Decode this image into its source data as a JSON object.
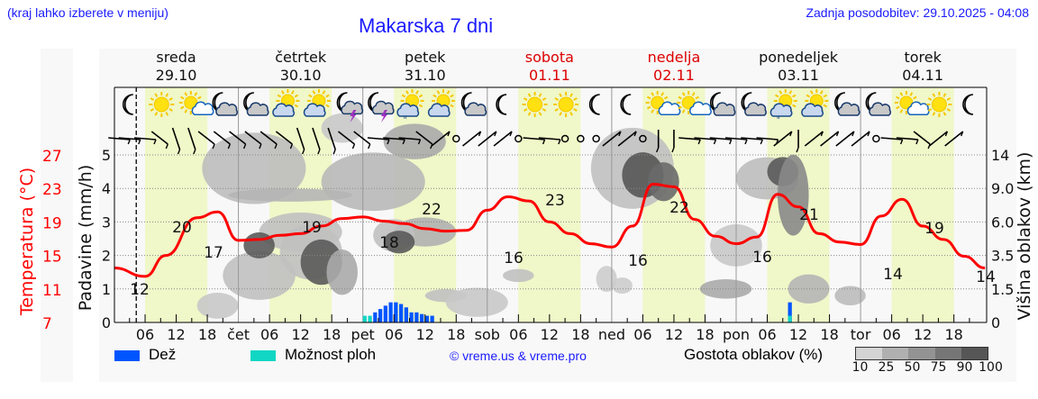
{
  "header": {
    "hint": "(kraj lahko izberete v meniju)",
    "title": "Makarska 7 dni",
    "updated": "Zadnja posodobitev: 29.10.2025 - 04:08"
  },
  "days": [
    {
      "name": "sreda",
      "date": "29.10",
      "weekend": false,
      "abbr": ""
    },
    {
      "name": "četrtek",
      "date": "30.10",
      "weekend": false,
      "abbr": "čet"
    },
    {
      "name": "petek",
      "date": "31.10",
      "weekend": false,
      "abbr": "pet"
    },
    {
      "name": "sobota",
      "date": "01.11",
      "weekend": true,
      "abbr": "sob"
    },
    {
      "name": "nedelja",
      "date": "02.11",
      "weekend": true,
      "abbr": "ned"
    },
    {
      "name": "ponedeljek",
      "date": "03.11",
      "weekend": false,
      "abbr": "pon"
    },
    {
      "name": "torek",
      "date": "04.11",
      "weekend": false,
      "abbr": "tor"
    }
  ],
  "axes": {
    "temp_label": "Temperatura (°C)",
    "temp_ticks": [
      "27",
      "23",
      "19",
      "15",
      "11",
      "7"
    ],
    "precip_label": "Padavine (mm/h)",
    "precip_ticks": [
      "5",
      "4",
      "3",
      "2",
      "1",
      "0"
    ],
    "cloud_label": "Višina oblakov (km)",
    "cloud_ticks": [
      "14",
      "9.0",
      "6.0",
      "3.5",
      "1.5",
      "0"
    ],
    "hour_ticks": [
      "06",
      "12",
      "18"
    ]
  },
  "legend": {
    "rain_label": "Dež",
    "rain_color": "#0055ff",
    "showers_label": "Možnost ploh",
    "showers_color": "#11d6c4",
    "copyright": "© vreme.us & vreme.pro",
    "density_label": "Gostota oblakov (%)",
    "density_ticks": [
      "10",
      "25",
      "50",
      "75",
      "90",
      "100"
    ],
    "density_colors": [
      "#d4d4d4",
      "#b0b0b0",
      "#939393",
      "#767676",
      "#565656"
    ]
  },
  "colors": {
    "temperature": "#ff0000",
    "daylight": "#f0f7c8",
    "title": "#1a1aff",
    "weekend": "#dd0000"
  },
  "icons": [
    "moon",
    "sun",
    "sun-small-cloud",
    "moon-cloud",
    "moon-cloud",
    "sun-cloud",
    "sun-cloud",
    "moon-storm",
    "moon-storm",
    "sun-cloud-rain",
    "sun-cloud",
    "moon-cloud",
    "moon",
    "sun",
    "sun",
    "moon",
    "moon",
    "sun-small-cloud",
    "sun-small-cloud",
    "moon-cloud",
    "moon-cloud",
    "sun-cloud-rain",
    "sun-cloud",
    "moon-cloud",
    "moon-cloud",
    "sun-small-cloud",
    "sun",
    "moon"
  ],
  "chart_data": {
    "type": "line",
    "title": "Makarska 7 dni",
    "xlabel": "",
    "ylabel": "Temperatura (°C)",
    "ylim": [
      7,
      27
    ],
    "y2label": "Padavine (mm/h)",
    "y2lim": [
      0,
      5
    ],
    "y3label": "Višina oblakov (km)",
    "grid": true,
    "series": [
      {
        "name": "Temperatura",
        "hours_from_start": [
          0,
          6,
          10,
          16,
          20,
          24,
          28,
          32,
          36,
          40,
          44,
          48,
          52,
          56,
          60,
          64,
          68,
          72,
          76,
          80,
          84,
          88,
          92,
          96,
          100,
          104,
          108,
          112,
          116,
          120,
          124,
          128,
          132,
          136,
          140,
          144,
          148,
          152,
          156,
          160,
          164,
          168
        ],
        "values": [
          13.5,
          12.5,
          15,
          19.5,
          20.2,
          16.8,
          16.9,
          17.4,
          17.6,
          18.5,
          19.4,
          19.6,
          19.1,
          18.8,
          18.2,
          17.9,
          18,
          20.4,
          22,
          21.5,
          19,
          17.6,
          16.4,
          16,
          18.5,
          23.5,
          23.2,
          19.3,
          17.3,
          16.4,
          17.2,
          22.3,
          20.8,
          17.6,
          16.6,
          16.3,
          19.7,
          21.7,
          18.5,
          16.9,
          14.9,
          13.5
        ]
      },
      {
        "name": "Dež (mm/h)",
        "hours_from_start": [
          48,
          49,
          50,
          51,
          52,
          53,
          54,
          55,
          56,
          57,
          58,
          59,
          60,
          61,
          130
        ],
        "values": [
          0.2,
          0.2,
          0.3,
          0.4,
          0.5,
          0.6,
          0.6,
          0.55,
          0.45,
          0.3,
          0.3,
          0.25,
          0.2,
          0.2,
          0.6
        ]
      }
    ],
    "annotations": [
      {
        "hour": 6,
        "label": "12"
      },
      {
        "hour": 13,
        "label": "20"
      },
      {
        "hour": 19,
        "label": "17"
      },
      {
        "hour": 38,
        "label": "19"
      },
      {
        "hour": 54,
        "label": "18"
      },
      {
        "hour": 60,
        "label": "22"
      },
      {
        "hour": 83,
        "label": "23"
      },
      {
        "hour": 77,
        "label": "16"
      },
      {
        "hour": 107,
        "label": "22"
      },
      {
        "hour": 101,
        "label": "16"
      },
      {
        "hour": 131,
        "label": "21"
      },
      {
        "hour": 125,
        "label": "16"
      },
      {
        "hour": 155,
        "label": "19"
      },
      {
        "hour": 149,
        "label": "14"
      },
      {
        "hour": 167,
        "label": "14"
      }
    ]
  }
}
